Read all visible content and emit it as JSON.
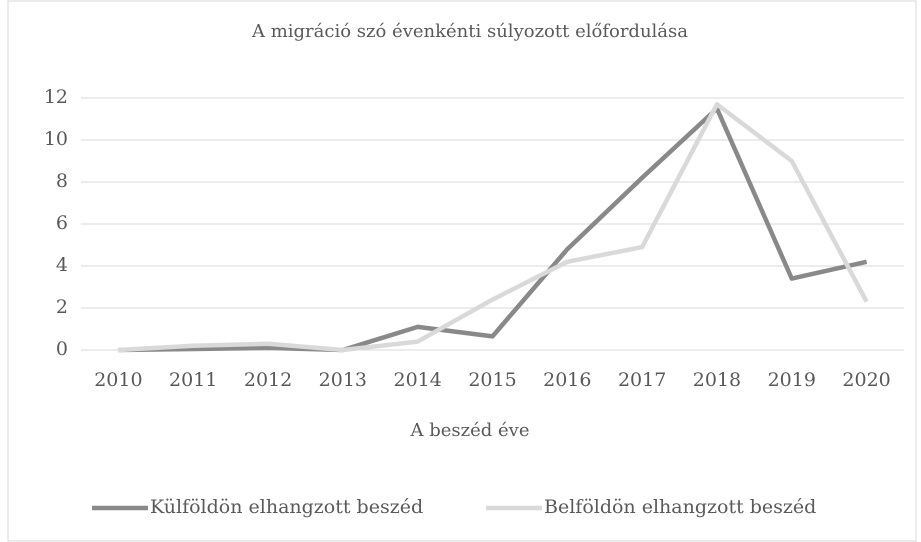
{
  "chart_data": {
    "type": "line",
    "title": "A migráció szó évenkénti súlyozott előfordulása",
    "x_label": "A beszéd éve",
    "categories": [
      "2010",
      "2011",
      "2012",
      "2013",
      "2014",
      "2015",
      "2016",
      "2017",
      "2018",
      "2019",
      "2020"
    ],
    "series": [
      {
        "name": "Külföldön elhangzott beszéd",
        "color": "#898989",
        "values": [
          0,
          0.05,
          0.1,
          0,
          1.1,
          0.65,
          4.8,
          8.2,
          11.5,
          3.4,
          4.2
        ]
      },
      {
        "name": "Belföldön elhangzott beszéd",
        "color": "#d9d9d9",
        "values": [
          0,
          0.2,
          0.3,
          0,
          0.4,
          2.4,
          4.2,
          4.9,
          11.7,
          9.0,
          2.3
        ]
      }
    ],
    "ylim": [
      0,
      12
    ],
    "yticks": [
      0,
      2,
      4,
      6,
      8,
      10,
      12
    ],
    "grid": true,
    "legend": "bottom"
  }
}
